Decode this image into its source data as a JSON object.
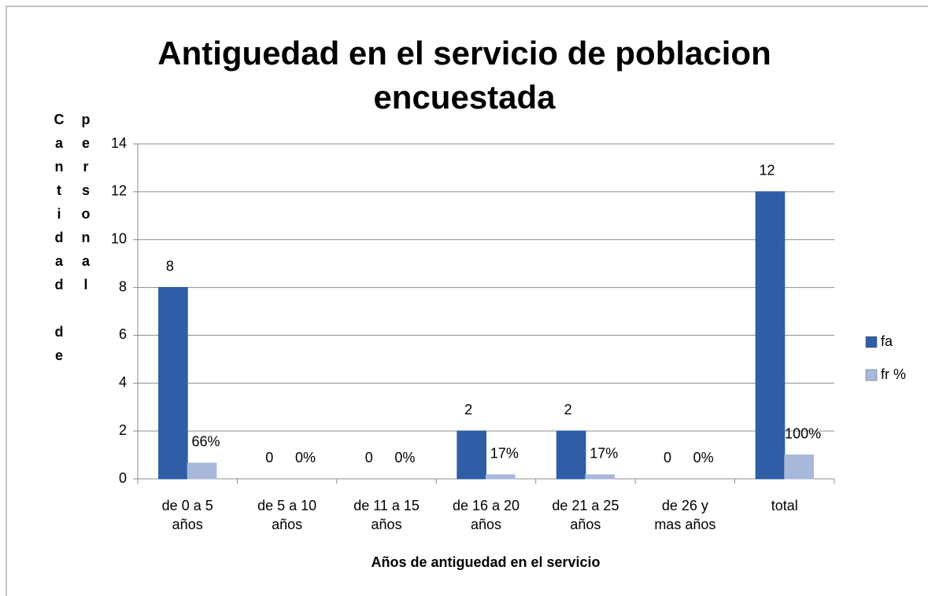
{
  "chart_data": {
    "type": "bar",
    "title": "Antiguedad en el servicio de poblacion encuestada",
    "x_label": "Años de antiguedad en el servicio",
    "y_label": "Cantidad de personal",
    "categories": [
      "de 0 a 5 años",
      "de 5 a 10 años",
      "de 11 a 15 años",
      "de 16 a 20 años",
      "de 21 a 25 años",
      "de 26 y mas años",
      "total"
    ],
    "series": [
      {
        "name": "fa",
        "color": "#2f5ea6",
        "values": [
          8,
          0,
          0,
          2,
          2,
          0,
          12
        ]
      },
      {
        "name": "fr %",
        "color": "#a8b9dc",
        "values": [
          0.66,
          0,
          0,
          0.17,
          0.17,
          0,
          1
        ],
        "value_labels": [
          "66%",
          "0%",
          "0%",
          "17%",
          "17%",
          "0%",
          "100%"
        ]
      }
    ],
    "ylim": [
      0,
      14
    ],
    "yticks": [
      0,
      2,
      4,
      6,
      8,
      10,
      12,
      14
    ],
    "grid": true,
    "legend": "right"
  }
}
